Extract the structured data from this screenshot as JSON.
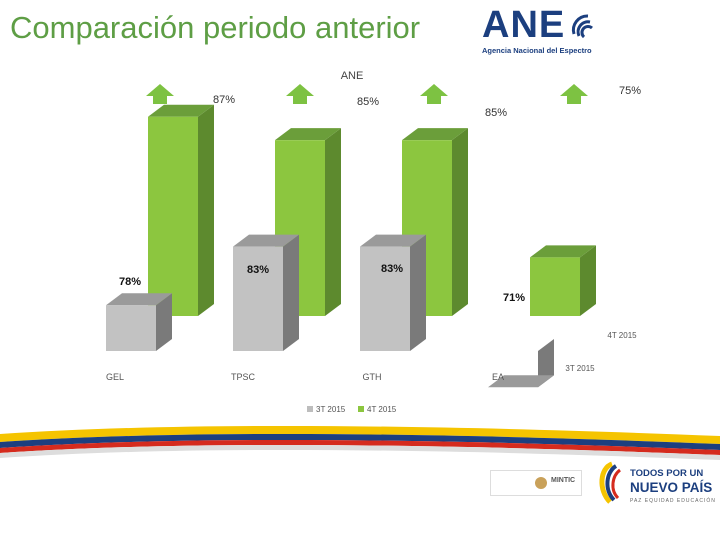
{
  "slide": {
    "title": "Comparación periodo anterior"
  },
  "logo_ane": {
    "name": "ANE",
    "subtitle": "Agencia Nacional del Espectro"
  },
  "footer": {
    "mintic_label": "MINTIC",
    "slogan_line1": "TODOS POR UN",
    "slogan_line2": "NUEVO PAÍS",
    "slogan_line3": "PAZ  EQUIDAD  EDUCACIÓN"
  },
  "colors": {
    "title": "#5e9e45",
    "series_3t": "#bdbdbd",
    "series_4t": "#8cc63f",
    "arrow": "#7dc242",
    "brand_blue": "#1c3f7f"
  },
  "chart_data": {
    "type": "bar",
    "title": "ANE",
    "categories": [
      "GEL",
      "TPSC",
      "GTH",
      "EA"
    ],
    "series": [
      {
        "name": "3T 2015",
        "values": [
          78,
          83,
          83,
          71
        ],
        "labels": [
          "78%",
          "83%",
          "83%",
          "71%"
        ]
      },
      {
        "name": "4T 2015",
        "values": [
          87,
          85,
          85,
          75
        ],
        "labels": [
          "87%",
          "85%",
          "85%",
          "75%"
        ]
      }
    ],
    "extra_labels": [
      "4T 2015",
      "3T 2015"
    ],
    "trend": [
      "up",
      "up",
      "up",
      "up"
    ],
    "legend": "bottom",
    "grid": false
  }
}
